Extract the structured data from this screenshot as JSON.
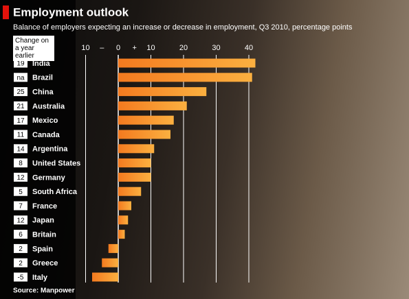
{
  "chart_data": {
    "type": "bar",
    "orientation": "horizontal",
    "title": "Employment outlook",
    "subtitle": "Balance of employers expecting an increase or decrease in employment, Q3 2010, percentage points",
    "change_header": "Change on a year earlier",
    "categories": [
      "India",
      "Brazil",
      "China",
      "Australia",
      "Mexico",
      "Canada",
      "Argentina",
      "United States",
      "Germany",
      "South Africa",
      "France",
      "Japan",
      "Britain",
      "Spain",
      "Greece",
      "Italy"
    ],
    "changes": [
      "19",
      "na",
      "25",
      "21",
      "17",
      "11",
      "14",
      "8",
      "12",
      "5",
      "7",
      "12",
      "6",
      "2",
      "2",
      "-5"
    ],
    "values": [
      42,
      41,
      27,
      21,
      17,
      16,
      11,
      10,
      10,
      7,
      4,
      3,
      2,
      -3,
      -5,
      -8
    ],
    "color": "#f7941d",
    "xlim": [
      -10,
      45
    ],
    "xticks": [
      {
        "value": -10,
        "label": "10"
      },
      0,
      10,
      20,
      30,
      40
    ],
    "axis_signs": [
      "–",
      "+"
    ],
    "grid": true,
    "source": "Source: Manpower"
  }
}
